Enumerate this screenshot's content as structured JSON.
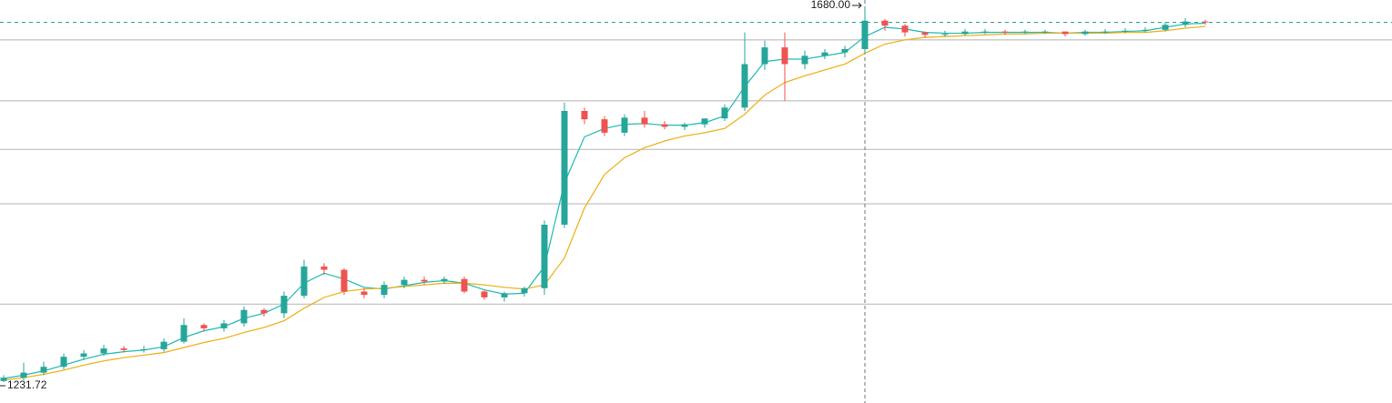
{
  "chart_data": {
    "type": "candlestick",
    "ylim": [
      1206.7,
      1688.7
    ],
    "grid": true,
    "ygrid": [
      1641,
      1568,
      1510,
      1445,
      1325
    ],
    "last_price_line": 1662,
    "max_marker": {
      "value": 1680,
      "label": "1680.00"
    },
    "min_marker": {
      "value": 1231.72,
      "label": "1231.72"
    },
    "up_color": "#26a69a",
    "down_color": "#ef5350",
    "open": [
      1233,
      1237,
      1243,
      1250,
      1262,
      1266,
      1272,
      1270,
      1271,
      1280,
      1300,
      1296,
      1302,
      1318,
      1314,
      1335,
      1370,
      1366,
      1340,
      1336,
      1348,
      1354,
      1352,
      1355,
      1340,
      1333,
      1338,
      1344,
      1420,
      1556,
      1546,
      1530,
      1548,
      1540,
      1537,
      1540,
      1547,
      1560,
      1612,
      1632,
      1612,
      1622,
      1626,
      1630,
      1664,
      1658,
      1650,
      1647,
      1648,
      1651,
      1651,
      1650,
      1651,
      1651,
      1648,
      1651,
      1651,
      1652,
      1653,
      1659,
      1663
    ],
    "high": [
      1240,
      1255,
      1256,
      1266,
      1270,
      1276,
      1275,
      1275,
      1284,
      1308,
      1302,
      1306,
      1322,
      1320,
      1340,
      1378,
      1374,
      1368,
      1344,
      1352,
      1358,
      1358,
      1358,
      1358,
      1342,
      1340,
      1346,
      1425,
      1566,
      1560,
      1550,
      1552,
      1556,
      1544,
      1542,
      1546,
      1564,
      1650,
      1640,
      1650,
      1628,
      1630,
      1634,
      1680,
      1666,
      1660,
      1651,
      1652,
      1654,
      1654,
      1653,
      1653,
      1653,
      1651,
      1653,
      1654,
      1655,
      1656,
      1662,
      1667,
      1665
    ],
    "low": [
      1231.72,
      1234,
      1240,
      1247,
      1258,
      1263,
      1267,
      1267,
      1268,
      1278,
      1292,
      1292,
      1298,
      1310,
      1308,
      1332,
      1360,
      1336,
      1332,
      1332,
      1344,
      1348,
      1349,
      1338,
      1330,
      1328,
      1334,
      1336,
      1416,
      1540,
      1526,
      1526,
      1536,
      1534,
      1533,
      1536,
      1544,
      1556,
      1605,
      1568,
      1606,
      1618,
      1620,
      1624,
      1652,
      1645,
      1644,
      1645,
      1646,
      1648,
      1647,
      1648,
      1648,
      1645,
      1646,
      1648,
      1649,
      1650,
      1651,
      1656,
      1659
    ],
    "close": [
      1237,
      1243,
      1250,
      1262,
      1266,
      1272,
      1270,
      1271,
      1280,
      1300,
      1296,
      1302,
      1318,
      1314,
      1335,
      1370,
      1366,
      1340,
      1336,
      1348,
      1354,
      1352,
      1355,
      1340,
      1333,
      1338,
      1344,
      1420,
      1556,
      1546,
      1530,
      1548,
      1540,
      1537,
      1540,
      1547,
      1560,
      1612,
      1632,
      1612,
      1622,
      1626,
      1630,
      1664,
      1658,
      1650,
      1647,
      1648,
      1651,
      1651,
      1650,
      1651,
      1651,
      1648,
      1651,
      1651,
      1652,
      1653,
      1659,
      1663,
      1662
    ],
    "moving_averages": [
      {
        "color": "#2bbfb8",
        "values": [
          1236,
          1240,
          1245,
          1252,
          1259,
          1265,
          1268,
          1270,
          1274,
          1285,
          1293,
          1298,
          1308,
          1314,
          1325,
          1350,
          1362,
          1355,
          1345,
          1343,
          1347,
          1351,
          1353,
          1350,
          1342,
          1337,
          1338,
          1370,
          1470,
          1525,
          1535,
          1540,
          1541,
          1539,
          1539,
          1542,
          1550,
          1585,
          1615,
          1618,
          1618,
          1622,
          1626,
          1645,
          1656,
          1654,
          1650,
          1649,
          1649,
          1650,
          1650,
          1650,
          1650,
          1649,
          1650,
          1650,
          1651,
          1652,
          1656,
          1660,
          1661
        ]
      },
      {
        "color": "#f0b323",
        "values": [
          1234,
          1237,
          1241,
          1246,
          1252,
          1257,
          1261,
          1264,
          1267,
          1273,
          1279,
          1284,
          1291,
          1297,
          1305,
          1320,
          1333,
          1340,
          1343,
          1344,
          1346,
          1348,
          1350,
          1350,
          1348,
          1345,
          1343,
          1348,
          1380,
          1440,
          1480,
          1500,
          1512,
          1520,
          1526,
          1530,
          1535,
          1552,
          1575,
          1590,
          1598,
          1605,
          1612,
          1625,
          1636,
          1641,
          1644,
          1645,
          1646,
          1647,
          1648,
          1648,
          1649,
          1649,
          1649,
          1649,
          1650,
          1650,
          1652,
          1655,
          1657
        ]
      }
    ]
  }
}
